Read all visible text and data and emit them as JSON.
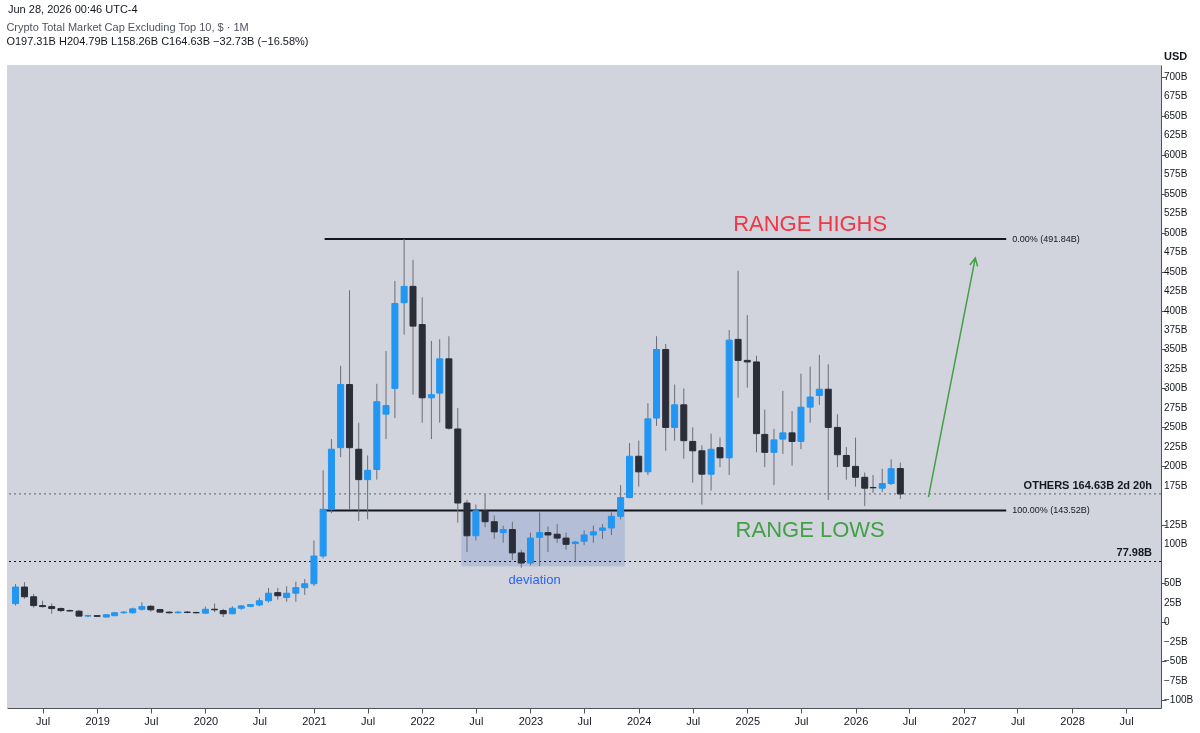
{
  "chart_data": {
    "type": "candlestick",
    "title": "Crypto Total Market Cap Excluding Top 10, $ · 1M",
    "subtitle": "O197.31B H204.79B L158.26B C164.63B −32.73B (−16.58%)",
    "x": [
      "2018-04",
      "2018-05",
      "2018-06",
      "2018-07",
      "2018-08",
      "2018-09",
      "2018-10",
      "2018-11",
      "2018-12",
      "2019-01",
      "2019-02",
      "2019-03",
      "2019-04",
      "2019-05",
      "2019-06",
      "2019-07",
      "2019-08",
      "2019-09",
      "2019-10",
      "2019-11",
      "2019-12",
      "2020-01",
      "2020-02",
      "2020-03",
      "2020-04",
      "2020-05",
      "2020-06",
      "2020-07",
      "2020-08",
      "2020-09",
      "2020-10",
      "2020-11",
      "2020-12",
      "2021-01",
      "2021-02",
      "2021-03",
      "2021-04",
      "2021-05",
      "2021-06",
      "2021-07",
      "2021-08",
      "2021-09",
      "2021-10",
      "2021-11",
      "2021-12",
      "2022-01",
      "2022-02",
      "2022-03",
      "2022-04",
      "2022-05",
      "2022-06",
      "2022-07",
      "2022-08",
      "2022-09",
      "2022-10",
      "2022-11",
      "2022-12",
      "2023-01",
      "2023-02",
      "2023-03",
      "2023-04",
      "2023-05",
      "2023-06",
      "2023-07",
      "2023-08",
      "2023-09",
      "2023-10",
      "2023-11",
      "2023-12",
      "2024-01",
      "2024-02",
      "2024-03",
      "2024-04",
      "2024-05",
      "2024-06",
      "2024-07",
      "2024-08",
      "2024-09",
      "2024-10",
      "2024-11",
      "2024-12",
      "2025-01",
      "2025-02",
      "2025-03",
      "2025-04",
      "2025-05",
      "2025-06",
      "2025-07",
      "2025-08",
      "2025-09",
      "2025-10",
      "2025-11",
      "2025-12",
      "2026-01",
      "2026-02",
      "2026-03",
      "2026-04",
      "2026-05",
      "2026-06"
    ],
    "ohlc": [
      [
        23.9,
        49,
        21.4,
        45.2
      ],
      [
        45.2,
        51.5,
        30.2,
        32.7
      ],
      [
        32.7,
        36.4,
        18.9,
        21.4
      ],
      [
        21.4,
        27.6,
        18.9,
        20.1
      ],
      [
        20.1,
        24,
        11,
        17.6
      ],
      [
        17.6,
        19,
        13,
        15
      ],
      [
        15,
        16.3,
        13.8,
        14.5
      ],
      [
        14.2,
        15.8,
        7.7,
        7.9
      ],
      [
        8,
        9.5,
        6.5,
        8.5
      ],
      [
        8.5,
        8.8,
        6.9,
        7.6
      ],
      [
        6.7,
        10.3,
        6.2,
        9.7
      ],
      [
        8.4,
        12.9,
        8,
        12.2
      ],
      [
        12.2,
        14.5,
        11,
        13
      ],
      [
        12.2,
        18.8,
        11.2,
        17.2
      ],
      [
        16.7,
        25.5,
        15,
        20.1
      ],
      [
        20.5,
        22,
        13.5,
        16
      ],
      [
        16.3,
        17.2,
        12.6,
        13
      ],
      [
        13,
        14,
        11,
        12.2
      ],
      [
        12.2,
        14.5,
        11.5,
        13
      ],
      [
        13,
        14.5,
        11.5,
        12.6
      ],
      [
        12.6,
        13.4,
        11,
        12.2
      ],
      [
        11.7,
        20.2,
        10.9,
        16.7
      ],
      [
        16.7,
        23.9,
        13,
        16
      ],
      [
        15,
        17.2,
        6.7,
        10.9
      ],
      [
        10.9,
        20.5,
        10.3,
        18
      ],
      [
        18,
        22,
        16,
        21
      ],
      [
        20.5,
        22.6,
        19.5,
        22.6
      ],
      [
        22.2,
        31.4,
        20.5,
        27.6
      ],
      [
        27.6,
        44,
        25.5,
        37.3
      ],
      [
        38,
        44,
        29,
        34
      ],
      [
        31.8,
        46.3,
        26.4,
        37.3
      ],
      [
        37.3,
        52,
        26.4,
        44.4
      ],
      [
        44.4,
        55.4,
        35.2,
        49.4
      ],
      [
        49.4,
        105,
        46.5,
        85
      ],
      [
        85,
        195,
        82,
        145
      ],
      [
        145,
        235,
        140,
        222
      ],
      [
        224,
        329,
        212,
        305
      ],
      [
        305,
        426,
        145,
        224
      ],
      [
        222,
        256,
        130,
        183
      ],
      [
        183,
        214,
        132,
        195
      ],
      [
        196,
        306,
        183,
        283
      ],
      [
        267,
        348,
        235,
        278
      ],
      [
        300,
        438,
        262,
        409
      ],
      [
        410,
        491.8,
        369,
        431
      ],
      [
        431,
        465,
        292,
        380
      ],
      [
        382,
        417,
        256,
        288
      ],
      [
        288,
        361,
        235,
        292
      ],
      [
        294,
        363,
        256,
        338
      ],
      [
        338,
        367,
        247,
        249
      ],
      [
        248,
        275,
        128,
        153
      ],
      [
        153,
        157,
        90,
        111
      ],
      [
        111,
        151,
        105,
        143
      ],
      [
        143,
        164,
        122,
        129
      ],
      [
        129,
        137,
        107,
        116
      ],
      [
        115,
        124,
        102,
        119
      ],
      [
        119,
        129,
        80,
        89
      ],
      [
        89,
        93,
        70,
        76
      ],
      [
        76,
        115,
        73,
        108
      ],
      [
        109,
        141,
        72,
        115
      ],
      [
        115,
        123,
        90,
        112
      ],
      [
        113,
        126,
        102,
        108
      ],
      [
        108,
        115,
        93,
        100
      ],
      [
        101,
        104,
        78,
        103
      ],
      [
        104,
        118,
        99,
        112
      ],
      [
        112,
        124,
        102,
        116
      ],
      [
        118,
        126,
        107,
        121
      ],
      [
        121,
        141,
        112,
        136
      ],
      [
        136,
        176,
        132,
        160
      ],
      [
        160,
        230,
        159,
        213
      ],
      [
        213,
        233,
        174,
        193
      ],
      [
        193,
        281,
        189,
        261
      ],
      [
        262,
        367,
        252,
        350
      ],
      [
        350,
        357,
        220,
        250
      ],
      [
        250,
        305,
        233,
        279
      ],
      [
        279,
        300,
        210,
        233
      ],
      [
        232,
        250,
        179,
        220
      ],
      [
        220,
        227,
        151,
        190
      ],
      [
        190,
        242,
        169,
        222
      ],
      [
        224,
        237,
        199,
        211
      ],
      [
        211,
        375,
        189,
        362
      ],
      [
        363,
        451,
        288,
        336
      ],
      [
        336,
        394,
        301,
        334
      ],
      [
        334,
        342,
        218,
        242
      ],
      [
        241,
        273,
        199,
        218
      ],
      [
        218,
        248,
        176,
        234
      ],
      [
        235,
        297,
        216,
        243
      ],
      [
        243,
        271,
        201,
        232
      ],
      [
        232,
        319,
        222,
        276
      ],
      [
        276,
        328,
        256,
        289
      ],
      [
        291,
        343,
        279,
        299
      ],
      [
        299,
        331,
        157,
        250
      ],
      [
        250,
        267,
        199,
        215
      ],
      [
        214,
        225,
        183,
        200
      ],
      [
        200,
        237,
        174,
        186
      ],
      [
        186,
        192,
        149,
        172
      ],
      [
        173,
        189,
        166,
        172.5
      ],
      [
        172,
        197,
        167,
        178
      ],
      [
        178,
        209,
        176,
        197
      ],
      [
        197.31,
        204.79,
        158.26,
        164.63
      ]
    ],
    "colors": [
      "#2196f3",
      "#2a2e39",
      "#2a2e39",
      "#2a2e39",
      "#2a2e39",
      "#2a2e39",
      "#2a2e39",
      "#2a2e39",
      "#2196f3",
      "#2a2e39",
      "#2196f3",
      "#2196f3",
      "#2196f3",
      "#2196f3",
      "#2196f3",
      "#2a2e39",
      "#2a2e39",
      "#2a2e39",
      "#2196f3",
      "#2a2e39",
      "#2a2e39",
      "#2196f3",
      "#2a2e39",
      "#2a2e39",
      "#2196f3",
      "#2196f3",
      "#2196f3",
      "#2196f3",
      "#2196f3",
      "#2a2e39",
      "#2196f3",
      "#2196f3",
      "#2196f3",
      "#2196f3",
      "#2196f3",
      "#2196f3",
      "#2196f3",
      "#2a2e39",
      "#2a2e39",
      "#2196f3",
      "#2196f3",
      "#2196f3",
      "#2196f3",
      "#2196f3",
      "#2a2e39",
      "#2a2e39",
      "#2196f3",
      "#2196f3",
      "#2a2e39",
      "#2a2e39",
      "#2a2e39",
      "#2196f3",
      "#2a2e39",
      "#2a2e39",
      "#2196f3",
      "#2a2e39",
      "#2a2e39",
      "#2196f3",
      "#2196f3",
      "#2a2e39",
      "#2a2e39",
      "#2a2e39",
      "#2196f3",
      "#2196f3",
      "#2196f3",
      "#2196f3",
      "#2196f3",
      "#2196f3",
      "#2196f3",
      "#2a2e39",
      "#2196f3",
      "#2196f3",
      "#2a2e39",
      "#2196f3",
      "#2a2e39",
      "#2a2e39",
      "#2a2e39",
      "#2196f3",
      "#2a2e39",
      "#2196f3",
      "#2a2e39",
      "#2a2e39",
      "#2a2e39",
      "#2a2e39",
      "#2196f3",
      "#2196f3",
      "#2a2e39",
      "#2196f3",
      "#2196f3",
      "#2196f3",
      "#2a2e39",
      "#2a2e39",
      "#2a2e39",
      "#2a2e39",
      "#2a2e39",
      "#2a2e39",
      "#2196f3",
      "#2196f3",
      "#2a2e39"
    ],
    "series": [
      {
        "type": "line",
        "color": "#131722",
        "x": [
          "2021-02-06",
          "2027-05-24"
        ],
        "values": [
          491.84,
          491.84
        ]
      },
      {
        "type": "line",
        "color": "#131722",
        "x": [
          "2021-02-06",
          "2027-05-24"
        ],
        "values": [
          143.52,
          143.52
        ]
      }
    ],
    "ref_lines": [
      {
        "axis": "y",
        "value": 164.63,
        "label": "OTHERS 164.63B 2d 20h",
        "color": "#787b86",
        "line_style": "dotted"
      },
      {
        "axis": "y",
        "value": 77.98,
        "label": "77.98B",
        "color": "#131722",
        "line_style": "dotted"
      }
    ],
    "annotations": [
      "Jun 28, 2026 00:46 UTC-4",
      "RANGE HIGHS",
      "RANGE LOWS",
      "deviation",
      {
        "text": "0.00% (491.84B)",
        "x": "2027-05-24",
        "y": 491.84
      },
      {
        "text": "100.00% (143.52B)",
        "x": "2027-05-24",
        "y": 143.52
      }
    ],
    "xlim": [
      "2018-03-20",
      "2028-10-10"
    ],
    "xticks": [
      {
        "value": "2018-07",
        "label": "Jul"
      },
      {
        "value": "2019-01",
        "label": "2019"
      },
      {
        "value": "2019-07",
        "label": "Jul"
      },
      {
        "value": "2020-01",
        "label": "2020"
      },
      {
        "value": "2020-07",
        "label": "Jul"
      },
      {
        "value": "2021-01",
        "label": "2021"
      },
      {
        "value": "2021-07",
        "label": "Jul"
      },
      {
        "value": "2022-01",
        "label": "2022"
      },
      {
        "value": "2022-07",
        "label": "Jul"
      },
      {
        "value": "2023-01",
        "label": "2023"
      },
      {
        "value": "2023-07",
        "label": "Jul"
      },
      {
        "value": "2024-01",
        "label": "2024"
      },
      {
        "value": "2024-07",
        "label": "Jul"
      },
      {
        "value": "2025-01",
        "label": "2025"
      },
      {
        "value": "2025-07",
        "label": "Jul"
      },
      {
        "value": "2026-01",
        "label": "2026"
      },
      {
        "value": "2026-07",
        "label": "Jul"
      },
      {
        "value": "2027-01",
        "label": "2027"
      },
      {
        "value": "2027-07",
        "label": "Jul"
      },
      {
        "value": "2028-01",
        "label": "2028"
      },
      {
        "value": "2028-07",
        "label": "Jul"
      }
    ],
    "ylim": [
      -110,
      715
    ],
    "yticks": [
      {
        "value": -100,
        "label": "−100B"
      },
      {
        "value": -75,
        "label": "−75B"
      },
      {
        "value": -50,
        "label": "−50B"
      },
      {
        "value": -25,
        "label": "−25B"
      },
      {
        "value": 0,
        "label": "0"
      },
      {
        "value": 25,
        "label": "25B"
      },
      {
        "value": 50,
        "label": "50B"
      },
      {
        "value": 100,
        "label": "100B"
      },
      {
        "value": 125,
        "label": "125B"
      },
      {
        "value": 175,
        "label": "175B"
      },
      {
        "value": 200,
        "label": "200B"
      },
      {
        "value": 225,
        "label": "225B"
      },
      {
        "value": 250,
        "label": "250B"
      },
      {
        "value": 275,
        "label": "275B"
      },
      {
        "value": 300,
        "label": "300B"
      },
      {
        "value": 325,
        "label": "325B"
      },
      {
        "value": 350,
        "label": "350B"
      },
      {
        "value": 375,
        "label": "375B"
      },
      {
        "value": 400,
        "label": "400B"
      },
      {
        "value": 425,
        "label": "425B"
      },
      {
        "value": 450,
        "label": "450B"
      },
      {
        "value": 475,
        "label": "475B"
      },
      {
        "value": 500,
        "label": "500B"
      },
      {
        "value": 525,
        "label": "525B"
      },
      {
        "value": 550,
        "label": "550B"
      },
      {
        "value": 575,
        "label": "575B"
      },
      {
        "value": 600,
        "label": "600B"
      },
      {
        "value": 625,
        "label": "625B"
      },
      {
        "value": 650,
        "label": "650B"
      },
      {
        "value": 675,
        "label": "675B"
      },
      {
        "value": 700,
        "label": "700B"
      }
    ],
    "ylabel": "USD",
    "grid": false
  }
}
